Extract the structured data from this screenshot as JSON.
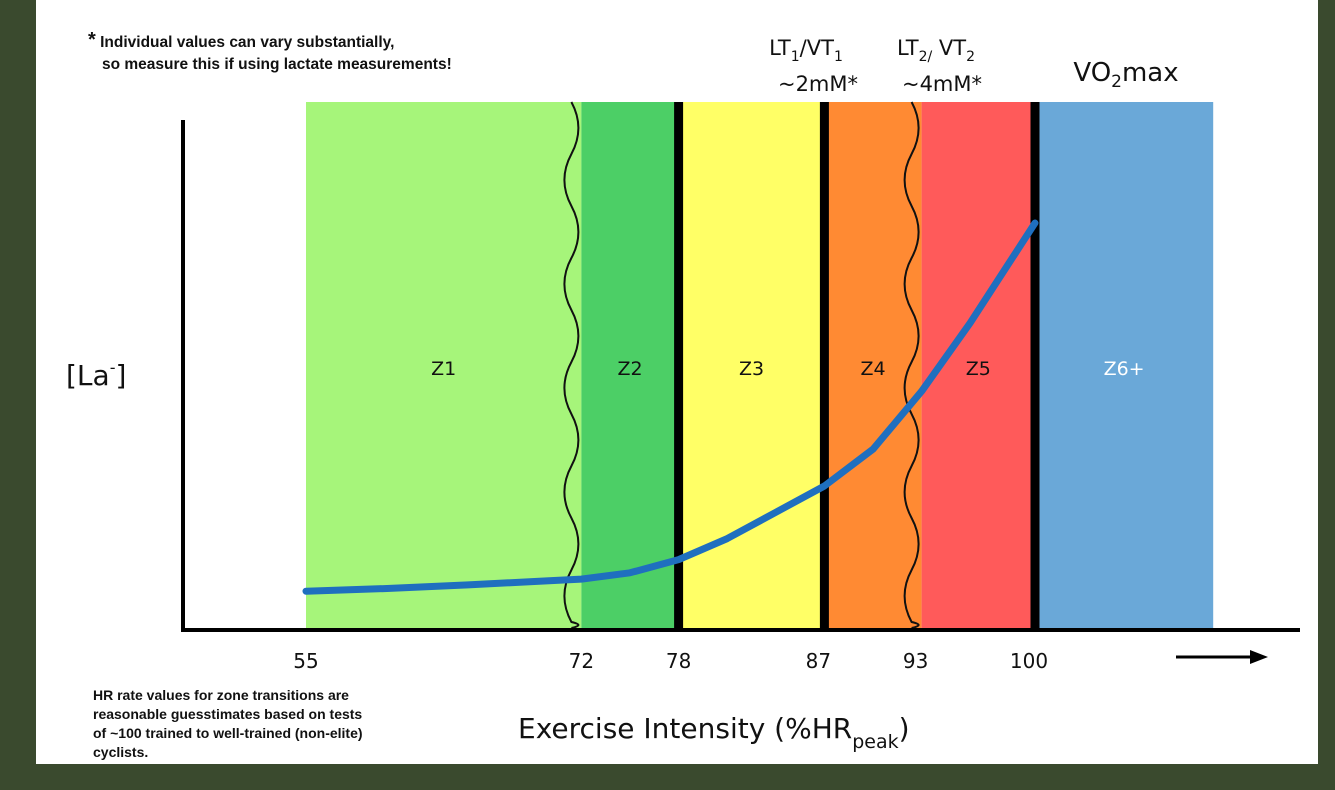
{
  "notes": {
    "asterisk": "*",
    "top_line1": "Individual values can vary substantially,",
    "top_line2": "so measure this if using lactate measurements!",
    "bottom_lines": [
      "HR rate values for zone transitions are",
      "reasonable guesstimates based on tests",
      "of ~100 trained to well-trained (non-elite)",
      "cyclists."
    ]
  },
  "chart_data": {
    "type": "area",
    "ylabel": {
      "base": "[La",
      "sup": "-",
      "close": "]"
    },
    "xlabel": {
      "base": "Exercise Intensity (%HR",
      "sub": "peak",
      "close": ")"
    },
    "xlim": [
      44,
      111
    ],
    "x_ticks": [
      55,
      72,
      78,
      87,
      93,
      100
    ],
    "arrow": "→",
    "zones": [
      {
        "name": "Z1",
        "from": 55,
        "to": 72,
        "color": "#a6f57a"
      },
      {
        "name": "Z2",
        "from": 72,
        "to": 78,
        "color": "#4ccf66"
      },
      {
        "name": "Z3",
        "from": 78,
        "to": 87,
        "color": "#ffff66"
      },
      {
        "name": "Z4",
        "from": 87,
        "to": 93,
        "color": "#ff8a33"
      },
      {
        "name": "Z5",
        "from": 93,
        "to": 100,
        "color": "#ff5a5a"
      },
      {
        "name": "Z6+",
        "from": 100,
        "to": 111,
        "color": "#6aa8d8"
      }
    ],
    "thresholds": [
      {
        "x": 78,
        "style": "solid",
        "line1": [
          "LT",
          "1",
          "/VT",
          "1"
        ],
        "line2": "~2mM*"
      },
      {
        "x": 87,
        "style": "solid",
        "line1": [
          "LT",
          "2/",
          " VT",
          "2"
        ],
        "line2": "~4mM*"
      },
      {
        "x": 100,
        "style": "solid",
        "line1": [
          "VO",
          "2",
          "max",
          ""
        ],
        "line2": ""
      }
    ],
    "fuzzy_boundaries": [
      72,
      93
    ],
    "series": [
      {
        "color": "#1f6fbf",
        "x": [
          55,
          60,
          65,
          70,
          72,
          75,
          78,
          81,
          84,
          87,
          90,
          93,
          96,
          100
        ],
        "y": [
          0.07,
          0.075,
          0.082,
          0.09,
          0.093,
          0.105,
          0.13,
          0.17,
          0.22,
          0.27,
          0.34,
          0.45,
          0.58,
          0.77
        ]
      }
    ]
  }
}
